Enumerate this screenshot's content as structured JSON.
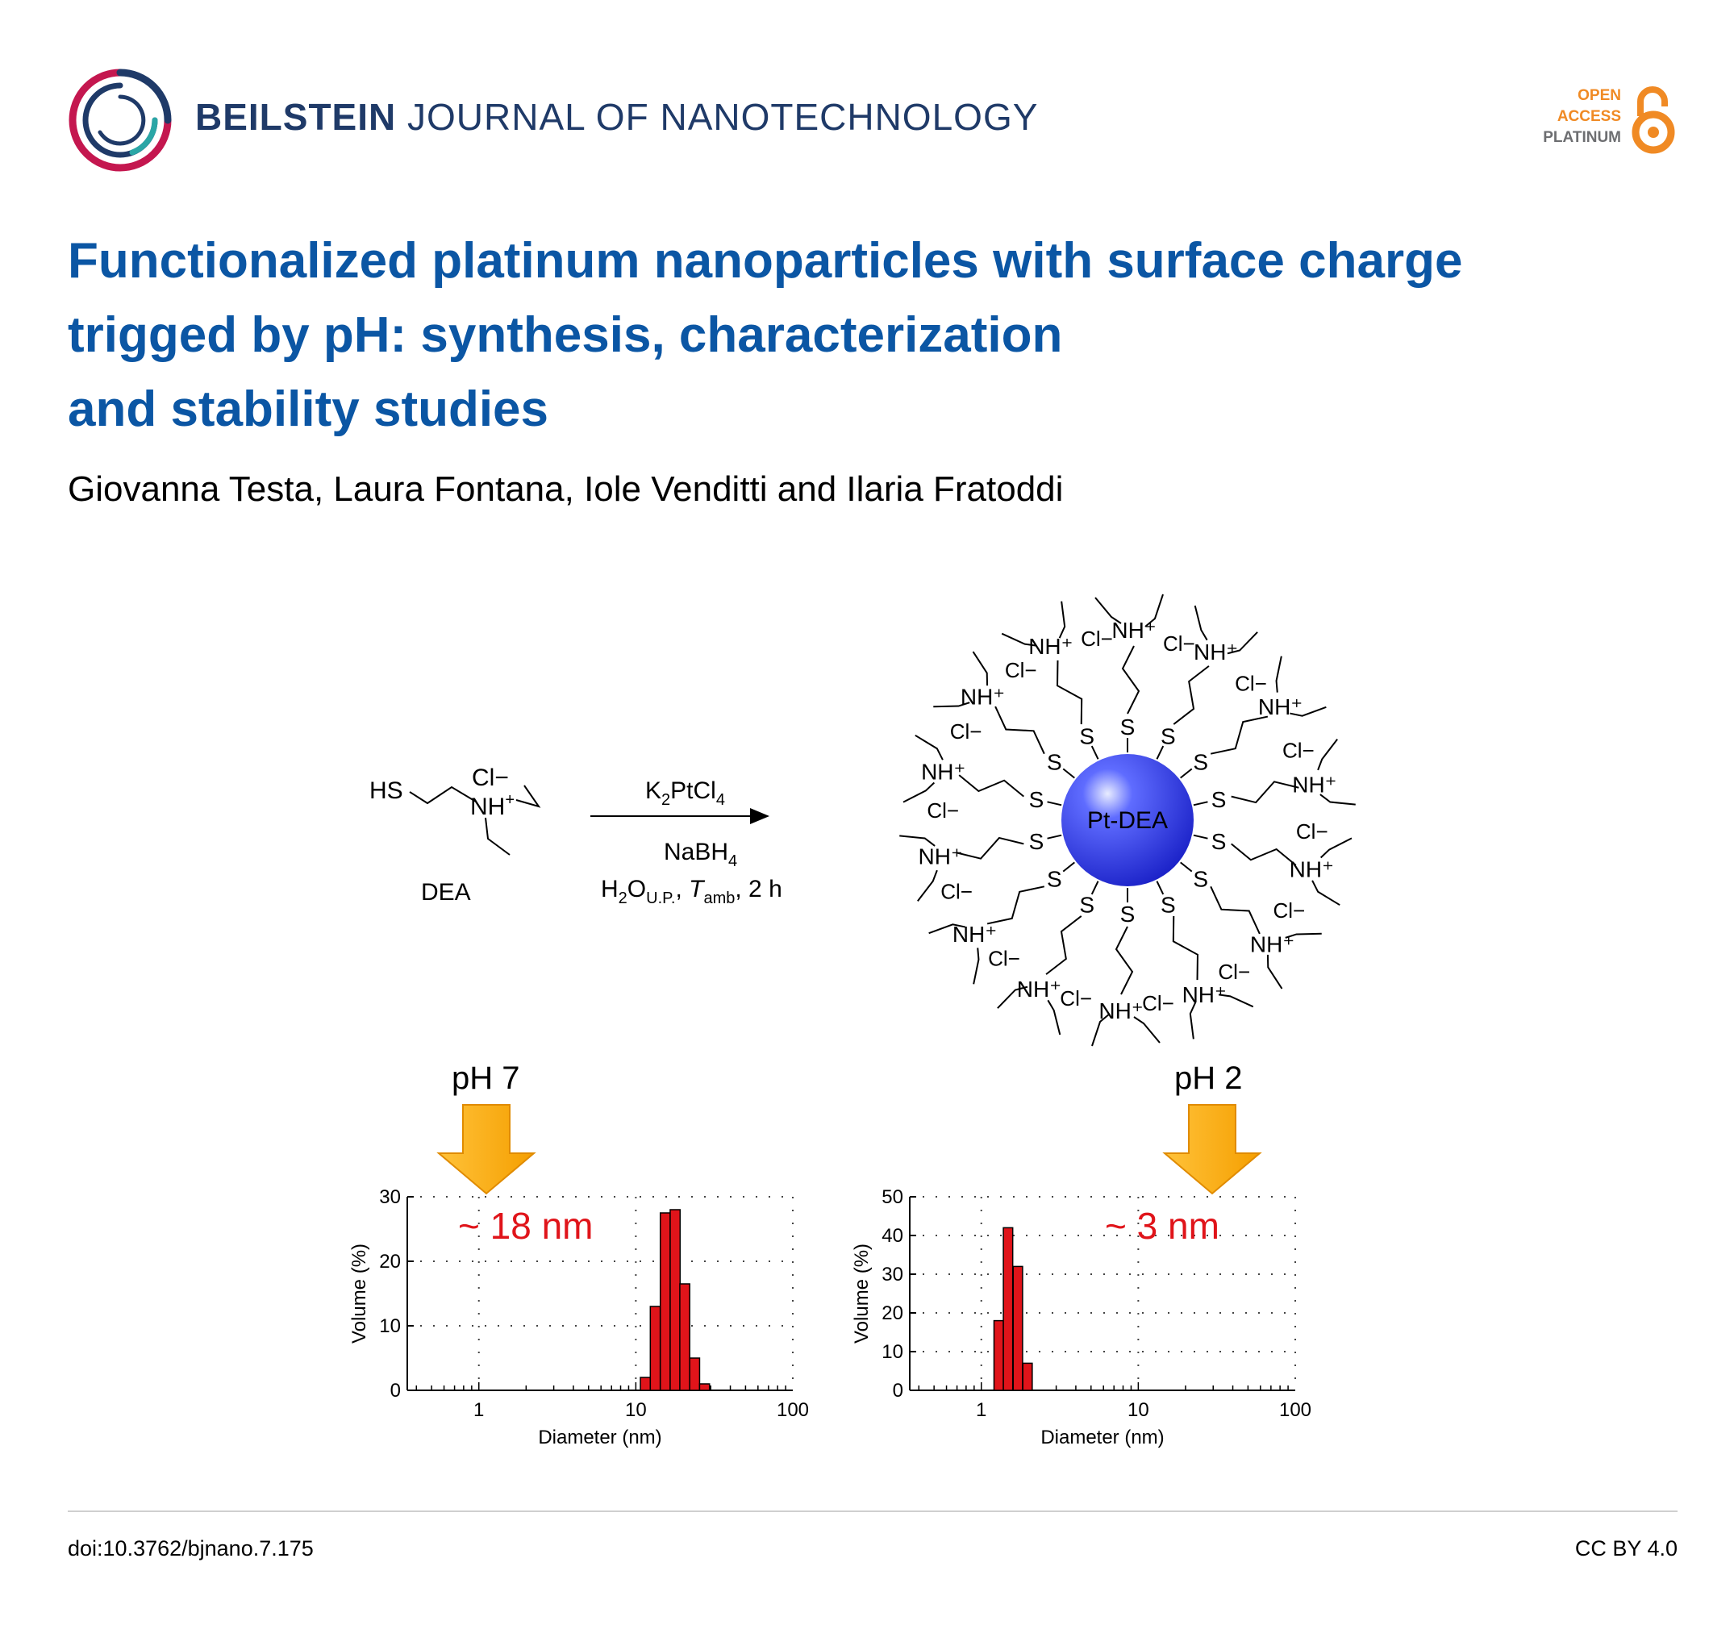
{
  "header": {
    "journal_bold": "BEILSTEIN",
    "journal_rest": "JOURNAL OF NANOTECHNOLOGY",
    "oa_line1": "OPEN",
    "oa_line2": "ACCESS",
    "oa_line3": "PLATINUM",
    "logo_icon": "beilstein-ring-logo",
    "oa_icon": "open-access-lock-icon"
  },
  "title_lines": [
    "Functionalized platinum nanoparticles with surface charge",
    "trigged by pH: synthesis, characterization",
    "and stability studies"
  ],
  "authors": "Giovanna Testa, Laura Fontana, Iole Venditti and Ilaria Fratoddi",
  "graphic": {
    "reactant_label": "DEA",
    "reactant_hs": "HS",
    "reactant_cl": "Cl−",
    "reactant_nh": "NH",
    "reagent1": "K2PtCl4",
    "reagent2": "NaBH4",
    "conditions": "H2OU.P., Tamb, 2 h",
    "nanoparticle_label": "Pt-DEA",
    "left_ph": "pH 7",
    "right_ph": "pH 2"
  },
  "chart_data": [
    {
      "type": "bar",
      "annotation": "~ 18 nm",
      "xlabel": "Diameter (nm)",
      "ylabel": "Volume (%)",
      "x_scale": "log",
      "xlim": [
        0.35,
        100
      ],
      "ylim": [
        0,
        30
      ],
      "x_ticks": [
        "1",
        "10",
        "100"
      ],
      "y_ticks": [
        "0",
        "10",
        "20",
        "30"
      ],
      "grid": "dotted",
      "bars": [
        {
          "x": 11.5,
          "y": 2
        },
        {
          "x": 13.3,
          "y": 13
        },
        {
          "x": 15.4,
          "y": 27.5
        },
        {
          "x": 17.8,
          "y": 28
        },
        {
          "x": 20.5,
          "y": 16.5
        },
        {
          "x": 23.7,
          "y": 5
        },
        {
          "x": 27.4,
          "y": 1
        }
      ]
    },
    {
      "type": "bar",
      "annotation": "~ 3 nm",
      "xlabel": "Diameter (nm)",
      "ylabel": "Volume (%)",
      "x_scale": "log",
      "xlim": [
        0.35,
        100
      ],
      "ylim": [
        0,
        50
      ],
      "x_ticks": [
        "1",
        "10",
        "100"
      ],
      "y_ticks": [
        "0",
        "10",
        "20",
        "30",
        "40",
        "50"
      ],
      "grid": "dotted",
      "bars": [
        {
          "x": 1.29,
          "y": 18
        },
        {
          "x": 1.48,
          "y": 42
        },
        {
          "x": 1.71,
          "y": 32
        },
        {
          "x": 1.97,
          "y": 7
        }
      ]
    }
  ],
  "footer": {
    "doi": "doi:10.3762/bjnano.7.175",
    "license": "CC BY 4.0"
  }
}
